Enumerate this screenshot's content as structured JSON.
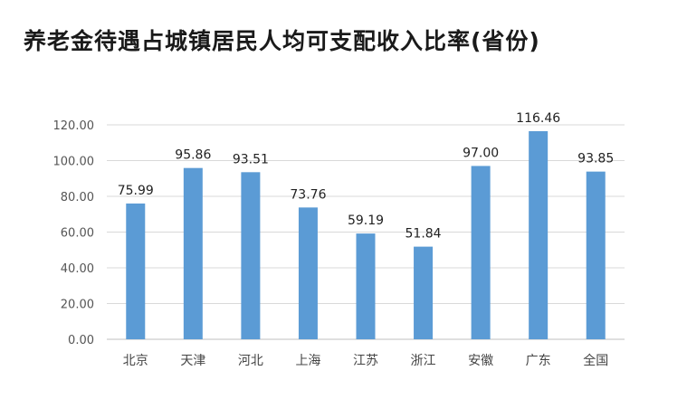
{
  "title": "养老金待遇占城镇居民人均可支配收入比率(省份)",
  "chart_data": {
    "type": "bar",
    "title": "养老金待遇占城镇居民人均可支配收入比率(省份)",
    "categories": [
      "北京",
      "天津",
      "河北",
      "上海",
      "江苏",
      "浙江",
      "安徽",
      "广东",
      "全国"
    ],
    "values": [
      75.99,
      95.86,
      93.51,
      73.76,
      59.19,
      51.84,
      97.0,
      116.46,
      93.85
    ],
    "value_labels": [
      "75.99",
      "95.86",
      "93.51",
      "73.76",
      "59.19",
      "51.84",
      "97.00",
      "116.46",
      "93.85"
    ],
    "yticks": [
      "0.00",
      "20.00",
      "40.00",
      "60.00",
      "80.00",
      "100.00",
      "120.00"
    ],
    "ylim": [
      0,
      120
    ],
    "grid": true,
    "bar_color": "#5b9bd5",
    "grid_color": "#d9d9d9"
  }
}
